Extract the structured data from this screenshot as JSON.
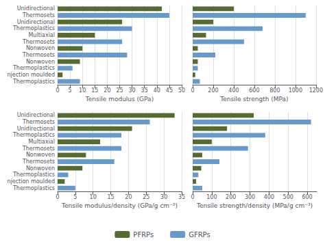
{
  "chart_data": [
    {
      "type": "bar",
      "orientation": "horizontal",
      "xlabel": "Tensile modulus (GPa)",
      "categories": [
        "Unidirectional",
        "Thermosets",
        "Unidirectional",
        "Thermoplastics",
        "Multiaxial",
        "Thermosets",
        "Nonwoven",
        "Thermosets",
        "Nonwoven",
        "Thermoplastics",
        "njection moulded",
        "Thermoplastics"
      ],
      "series": [
        {
          "name": "PFRPs",
          "color": "#556B2F",
          "values": [
            42,
            null,
            26,
            null,
            15,
            null,
            10,
            null,
            9,
            null,
            2,
            null
          ]
        },
        {
          "name": "GFRPs",
          "color": "#6699CC",
          "values": [
            null,
            45,
            null,
            30,
            null,
            26,
            null,
            28,
            null,
            6,
            null,
            9
          ]
        }
      ],
      "xlim": [
        0,
        50
      ],
      "xticks": [
        0,
        5,
        10,
        15,
        20,
        25,
        30,
        35,
        40,
        45,
        50
      ],
      "grid": true,
      "legend": "bottom"
    },
    {
      "type": "bar",
      "orientation": "horizontal",
      "xlabel": "Tensile strength (MPa)",
      "categories": [
        "Unidirectional",
        "Thermosets",
        "Unidirectional",
        "Thermoplastics",
        "Multiaxial",
        "Thermosets",
        "Nonwoven",
        "Thermosets",
        "Nonwoven",
        "Thermoplastics",
        "njection moulded",
        "Thermoplastics"
      ],
      "series": [
        {
          "name": "PFRPs",
          "color": "#556B2F",
          "values": [
            400,
            null,
            200,
            null,
            130,
            null,
            50,
            null,
            50,
            null,
            25,
            null
          ]
        },
        {
          "name": "GFRPs",
          "color": "#6699CC",
          "values": [
            null,
            1100,
            null,
            680,
            null,
            500,
            null,
            220,
            null,
            50,
            null,
            70
          ]
        }
      ],
      "xlim": [
        0,
        1200
      ],
      "xticks": [
        0,
        200,
        400,
        600,
        800,
        1000,
        1200
      ],
      "grid": true,
      "legend": "bottom",
      "tick_labels": "x"
    },
    {
      "type": "bar",
      "orientation": "horizontal",
      "xlabel": "Tensile modulus/density (GPa/g cm⁻³)",
      "categories": [
        "Unidirectional",
        "Thermosets",
        "Unidirectional",
        "Thermoplastics",
        "Multiaxial",
        "Thermosets",
        "Nonwoven",
        "Thermosets",
        "Nonwoven",
        "Thermoplastics",
        "njection moulded",
        "Thermoplastics"
      ],
      "series": [
        {
          "name": "PFRPs",
          "color": "#556B2F",
          "values": [
            33,
            null,
            21,
            null,
            12,
            null,
            8,
            null,
            7,
            null,
            2,
            null
          ]
        },
        {
          "name": "GFRPs",
          "color": "#6699CC",
          "values": [
            null,
            26,
            null,
            18,
            null,
            18,
            null,
            16,
            null,
            3,
            null,
            5
          ]
        }
      ],
      "xlim": [
        0,
        35
      ],
      "xticks": [
        0,
        5,
        10,
        15,
        20,
        25,
        30,
        35
      ],
      "grid": true,
      "legend": "bottom"
    },
    {
      "type": "bar",
      "orientation": "horizontal",
      "xlabel": "Tensile strength/density (MPa/g cm⁻³)",
      "categories": [
        "Unidirectional",
        "Thermosets",
        "Unidirectional",
        "Thermoplastics",
        "Multiaxial",
        "Thermosets",
        "Nonwoven",
        "Thermosets",
        "Nonwoven",
        "Thermoplastics",
        "njection moulded",
        "Thermoplastics"
      ],
      "series": [
        {
          "name": "PFRPs",
          "color": "#556B2F",
          "values": [
            320,
            null,
            180,
            null,
            100,
            null,
            50,
            null,
            45,
            null,
            18,
            null
          ]
        },
        {
          "name": "GFRPs",
          "color": "#6699CC",
          "values": [
            null,
            620,
            null,
            380,
            null,
            290,
            null,
            140,
            null,
            30,
            null,
            50
          ]
        }
      ],
      "xlim": [
        0,
        650
      ],
      "xticks": [
        0,
        100,
        200,
        300,
        400,
        500,
        600
      ],
      "grid": true,
      "legend": "bottom",
      "tick_labels": "x"
    }
  ]
}
